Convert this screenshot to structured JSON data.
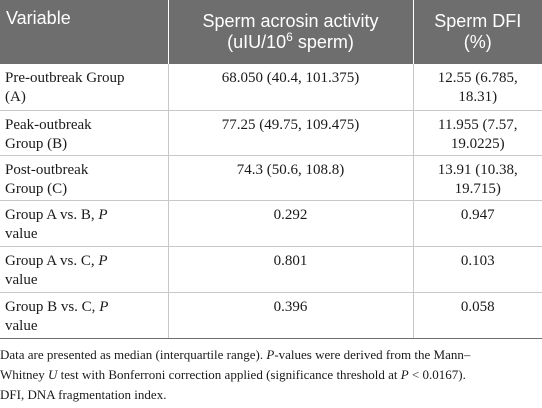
{
  "header": {
    "col1": "Variable",
    "col2_main": "Sperm acrosin activity",
    "col2_sub_prefix": "(uIU/10",
    "col2_sub_sup": "6",
    "col2_sub_suffix": " sperm)",
    "col3_main": "Sperm DFI",
    "col3_sub": "(%)"
  },
  "rows": [
    {
      "label_a": "Pre-outbreak Group",
      "label_b": "(A)",
      "acrosin": "68.050 (40.4, 101.375)",
      "dfi_a": "12.55 (6.785,",
      "dfi_b": "18.31)"
    },
    {
      "label_a": "Peak-outbreak",
      "label_b": "Group (B)",
      "acrosin": "77.25 (49.75, 109.475)",
      "dfi_a": "11.955 (7.57,",
      "dfi_b": "19.0225)"
    },
    {
      "label_a": "Post-outbreak",
      "label_b": "Group (C)",
      "acrosin": "74.3 (50.6, 108.8)",
      "dfi_a": "13.91 (10.38,",
      "dfi_b": "19.715)"
    },
    {
      "label_a": "Group A vs. B, ",
      "label_p": "P",
      "label_b": "value",
      "acrosin": "0.292",
      "dfi_a": "0.947"
    },
    {
      "label_a": "Group A vs. C, ",
      "label_p": "P",
      "label_b": "value",
      "acrosin": "0.801",
      "dfi_a": "0.103"
    },
    {
      "label_a": "Group B vs. C, ",
      "label_p": "P",
      "label_b": "value",
      "acrosin": "0.396",
      "dfi_a": "0.058"
    }
  ],
  "footnote": {
    "t1": "Data are presented as median (interquartile range). ",
    "t2": "P",
    "t3": "-values were derived from the Mann–",
    "t4": "Whitney ",
    "t5": "U",
    "t6": " test with Bonferroni correction applied (significance threshold at ",
    "t7": "P",
    "t8": " < 0.0167).",
    "t9": "DFI, DNA fragmentation index."
  }
}
